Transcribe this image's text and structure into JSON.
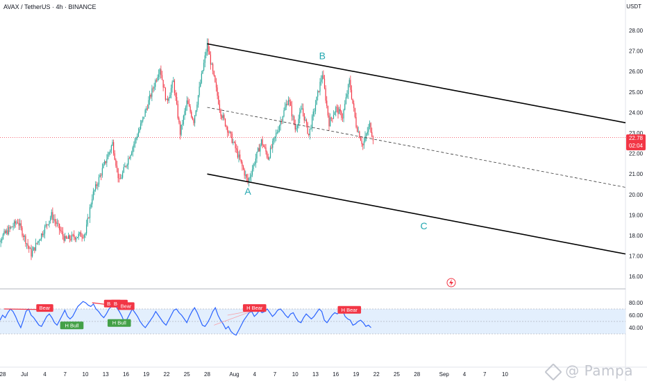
{
  "header": {
    "symbol_line": "AVAX / TetherUS · 4h · BINANCE",
    "currency": "USDT"
  },
  "price_tag": {
    "price": "22.78",
    "countdown": "02:04"
  },
  "watermark": "@ Pampa",
  "colors": {
    "up": "#26a69a",
    "down": "#f23645",
    "rsi_line": "#2962ff",
    "rsi_band": "#e3effd",
    "wave_label": "#22a7b0",
    "bull": "#43a047",
    "bear": "#f23645"
  },
  "chart_data": [
    {
      "type": "candlestick",
      "title": "AVAX / TetherUS · 4h · BINANCE",
      "ylabel": "USDT",
      "ylim": [
        15.8,
        28.6
      ],
      "price_ticks": [
        "28.00",
        "27.00",
        "26.00",
        "25.00",
        "24.00",
        "23.00",
        "22.00",
        "21.00",
        "20.00",
        "19.00",
        "18.00",
        "17.00",
        "16.00"
      ],
      "x_ticks": [
        "28",
        "Jul",
        "4",
        "7",
        "10",
        "13",
        "16",
        "19",
        "22",
        "25",
        "28",
        "Aug",
        "4",
        "7",
        "10",
        "13",
        "16",
        "19",
        "22",
        "25",
        "28",
        "Sep",
        "4",
        "7",
        "10"
      ],
      "last_price": 22.78,
      "swing_path": [
        [
          "Jun 26",
          17.4
        ],
        [
          "Jun 30",
          18.7
        ],
        [
          "Jul 2",
          17.1
        ],
        [
          "Jul 5",
          19.0
        ],
        [
          "Jul 7",
          17.8
        ],
        [
          "Jul 10",
          18.1
        ],
        [
          "Jul 11",
          19.9
        ],
        [
          "Jul 14",
          22.5
        ],
        [
          "Jul 15",
          20.6
        ],
        [
          "Jul 18",
          23.2
        ],
        [
          "Jul 21",
          26.2
        ],
        [
          "Jul 22",
          24.5
        ],
        [
          "Jul 23",
          25.5
        ],
        [
          "Jul 24",
          23.0
        ],
        [
          "Jul 25",
          24.5
        ],
        [
          "Jul 26",
          23.6
        ],
        [
          "Jul 28",
          27.3
        ],
        [
          "Jul 30",
          24.0
        ],
        [
          "Aug 1",
          22.4
        ],
        [
          "Aug 3",
          20.6
        ],
        [
          "Aug 5",
          22.6
        ],
        [
          "Aug 6",
          21.8
        ],
        [
          "Aug 9",
          24.7
        ],
        [
          "Aug 10",
          23.2
        ],
        [
          "Aug 11",
          24.2
        ],
        [
          "Aug 12",
          22.9
        ],
        [
          "Aug 14",
          25.9
        ],
        [
          "Aug 15",
          23.5
        ],
        [
          "Aug 16",
          24.2
        ],
        [
          "Aug 17",
          23.8
        ],
        [
          "Aug 18",
          25.5
        ],
        [
          "Aug 19",
          23.4
        ],
        [
          "Aug 20",
          22.4
        ],
        [
          "Aug 21",
          23.4
        ],
        [
          "Aug 21.5",
          22.78
        ]
      ],
      "channel": {
        "upper": [
          [
            "Jul 28",
            27.35
          ],
          [
            "Sep 13",
            23.5
          ]
        ],
        "middle": [
          [
            "Jul 28",
            24.25
          ],
          [
            "Sep 13",
            20.35
          ]
        ],
        "lower": [
          [
            "Jul 28",
            21.0
          ],
          [
            "Sep 13",
            17.1
          ]
        ]
      },
      "wave_labels": [
        {
          "text": "A",
          "x": "Aug 3",
          "y": 20.0
        },
        {
          "text": "B",
          "x": "Aug 14",
          "y": 26.6
        },
        {
          "text": "C",
          "x": "Aug 29",
          "y": 18.3
        }
      ]
    },
    {
      "type": "line",
      "series": [
        {
          "values_note": "",
          "values": [
            52,
            60,
            56,
            64,
            70,
            66,
            58,
            48,
            40,
            52,
            66,
            70,
            60,
            56,
            50,
            44,
            42,
            50,
            58,
            62,
            56,
            48,
            44,
            52,
            60,
            68,
            58,
            54,
            58,
            66,
            74,
            78,
            82,
            80,
            76,
            74,
            78,
            70,
            66,
            60,
            56,
            62,
            70,
            74,
            78,
            72,
            66,
            58,
            48,
            54,
            62,
            70,
            64,
            58,
            50,
            44,
            40,
            46,
            52,
            58,
            66,
            60,
            54,
            48,
            44,
            52,
            60,
            68,
            70,
            64,
            60,
            54,
            48,
            58,
            66,
            72,
            64,
            54,
            44,
            42,
            48,
            56,
            66,
            72,
            60,
            52,
            46,
            38,
            42,
            34,
            30,
            28,
            36,
            44,
            52,
            58,
            64,
            66,
            58,
            62,
            68,
            64,
            66,
            70,
            64,
            58,
            62,
            68,
            70,
            66,
            60,
            56,
            62,
            64,
            56,
            50,
            48,
            56,
            62,
            58,
            54,
            58,
            64,
            70,
            66,
            52,
            48,
            54,
            60,
            64,
            62,
            66,
            68,
            58,
            54,
            52,
            44,
            46,
            50,
            52,
            48,
            42,
            44,
            40
          ]
        }
      ],
      "ylim": [
        20,
        88
      ],
      "y_ticks": [
        "80.00",
        "60.00",
        "40.00"
      ],
      "band": [
        30,
        70
      ],
      "midline": 50,
      "markers": [
        {
          "text": "Bear",
          "kind": "bear",
          "x": "Jul 4",
          "y": 71
        },
        {
          "text": "Bear",
          "kind": "bear",
          "x": "Jul 14",
          "y": 78
        },
        {
          "text": "Bear",
          "kind": "bear",
          "x": "Jul 15",
          "y": 78
        },
        {
          "text": "Bear",
          "kind": "bear",
          "x": "Jul 16",
          "y": 74
        },
        {
          "text": "H Bear",
          "kind": "bear",
          "x": "Aug 4",
          "y": 71
        },
        {
          "text": "H Bear",
          "kind": "bear",
          "x": "Aug 18",
          "y": 68
        },
        {
          "text": "H Bull",
          "kind": "bull",
          "x": "Jul 8",
          "y": 43
        },
        {
          "text": "H Bull",
          "kind": "bull",
          "x": "Jul 15",
          "y": 47
        }
      ]
    }
  ]
}
